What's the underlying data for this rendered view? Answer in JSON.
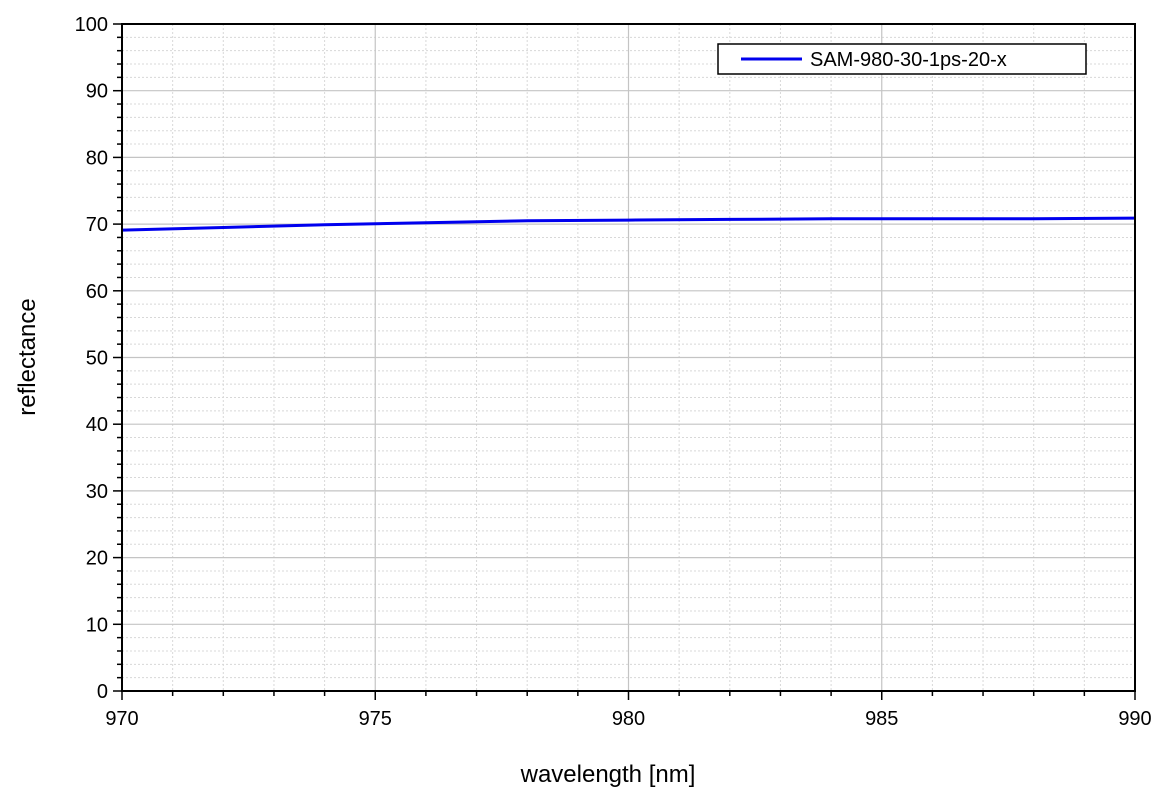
{
  "chart_data": {
    "type": "line",
    "title": "",
    "xlabel": "wavelength [nm]",
    "ylabel": "reflectance",
    "xlim": [
      970,
      990
    ],
    "ylim": [
      0,
      100
    ],
    "x_ticks": [
      970,
      975,
      980,
      985,
      990
    ],
    "y_ticks": [
      0,
      10,
      20,
      30,
      40,
      50,
      60,
      70,
      80,
      90,
      100
    ],
    "grid": true,
    "legend_position": "top-right",
    "series": [
      {
        "name": "SAM-980-30-1ps-20-x",
        "color": "#0000ee",
        "x": [
          970,
          972,
          974,
          976,
          978,
          980,
          982,
          984,
          986,
          988,
          990
        ],
        "y": [
          69.1,
          69.5,
          69.9,
          70.2,
          70.5,
          70.6,
          70.7,
          70.8,
          70.8,
          70.8,
          70.9
        ]
      }
    ]
  }
}
